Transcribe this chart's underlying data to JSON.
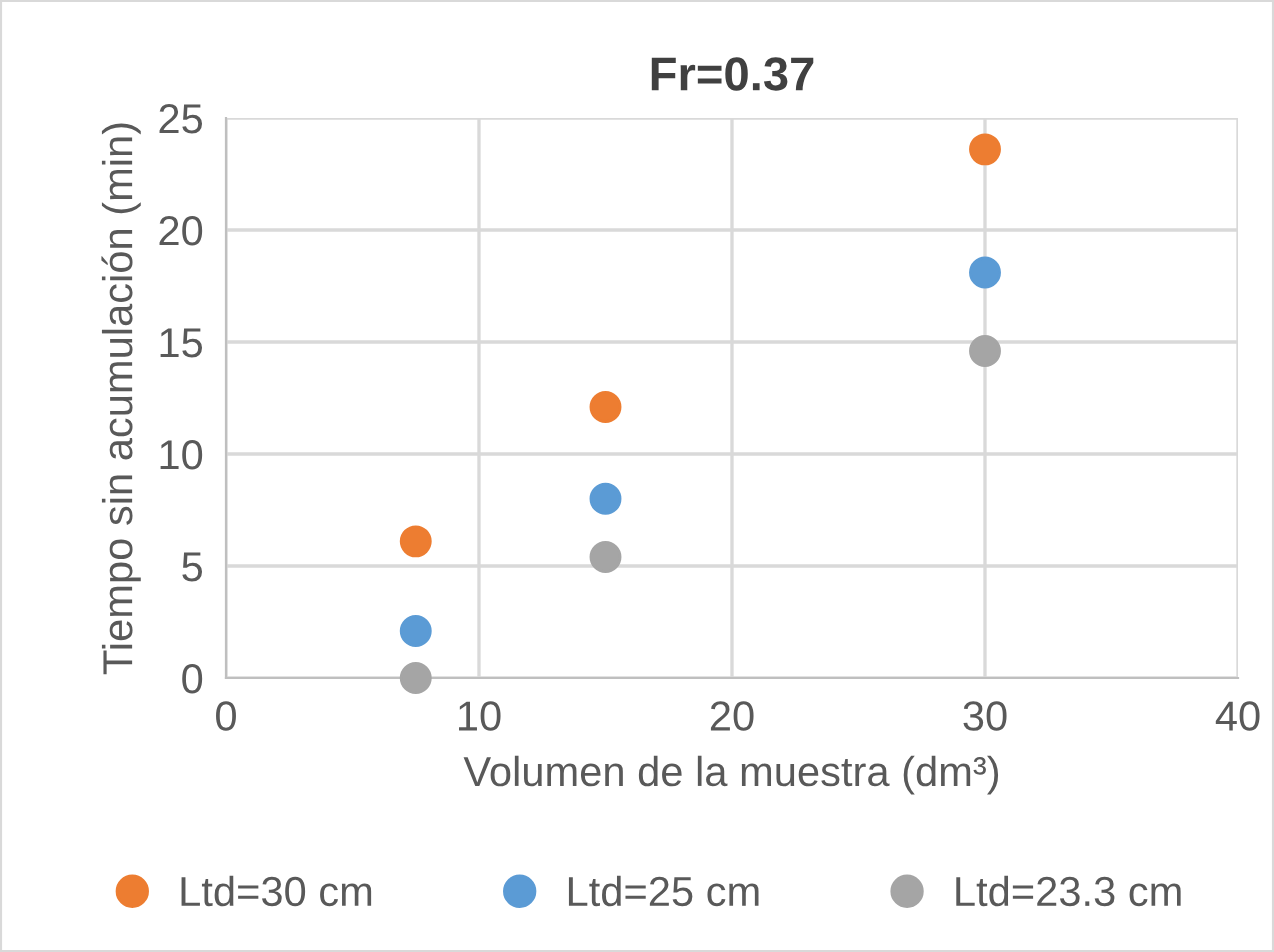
{
  "chart_data": {
    "type": "scatter",
    "title": "Fr=0.37",
    "xlabel": "Volumen de la muestra (dm³)",
    "ylabel": "Tiempo sin acumulación (min)",
    "x": [
      7.5,
      15,
      30
    ],
    "series": [
      {
        "name": "Ltd=30 cm",
        "color": "#ed7d31",
        "values": [
          6.1,
          12.1,
          23.6
        ]
      },
      {
        "name": "Ltd=25 cm",
        "color": "#5b9bd5",
        "values": [
          2.1,
          8.0,
          18.1
        ]
      },
      {
        "name": "Ltd=23.3 cm",
        "color": "#a5a5a5",
        "values": [
          0.0,
          5.4,
          14.6
        ]
      }
    ],
    "xlim": [
      0,
      40
    ],
    "xticks": [
      0,
      10,
      20,
      30,
      40
    ],
    "ylim": [
      0,
      25
    ],
    "yticks": [
      0,
      5,
      10,
      15,
      20,
      25
    ],
    "grid": true,
    "legend": "bottom",
    "marker": "circle"
  }
}
